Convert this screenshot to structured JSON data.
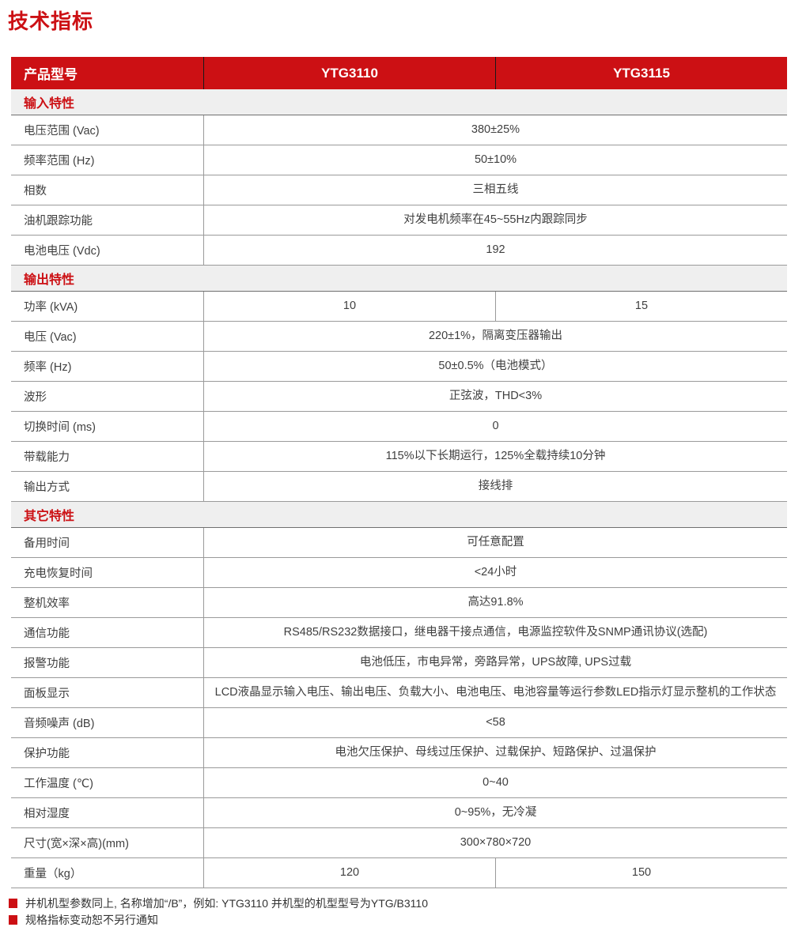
{
  "page": {
    "title": "技术指标"
  },
  "colors": {
    "accent_red": "#cc1014",
    "header_bg": "#cc1014",
    "section_bg": "#efefef",
    "body_text": "#3f3f3f",
    "grid_line": "#9a9a9a"
  },
  "table": {
    "header": {
      "label": "产品型号",
      "model_1": "YTG3110",
      "model_2": "YTG3115"
    },
    "sections": [
      {
        "title": "输入特性",
        "rows": [
          {
            "label": "电压范围 (Vac)",
            "value": "380±25%"
          },
          {
            "label": "频率范围 (Hz)",
            "value": "50±10%"
          },
          {
            "label": "相数",
            "value": "三相五线"
          },
          {
            "label": "油机跟踪功能",
            "value": "对发电机频率在45~55Hz内跟踪同步"
          },
          {
            "label": "电池电压 (Vdc)",
            "value": "192"
          }
        ]
      },
      {
        "title": "输出特性",
        "rows": [
          {
            "label": "功率 (kVA)",
            "values": [
              "10",
              "15"
            ]
          },
          {
            "label": "电压 (Vac)",
            "value": "220±1%，隔离变压器输出"
          },
          {
            "label": "频率 (Hz)",
            "value": "50±0.5%（电池模式）"
          },
          {
            "label": "波形",
            "value": "正弦波，THD<3%"
          },
          {
            "label": "切换时间 (ms)",
            "value": "0"
          },
          {
            "label": "带载能力",
            "value": "115%以下长期运行，125%全载持续10分钟"
          },
          {
            "label": "输出方式",
            "value": "接线排"
          }
        ]
      },
      {
        "title": "其它特性",
        "rows": [
          {
            "label": "备用时间",
            "value": "可任意配置"
          },
          {
            "label": "充电恢复时间",
            "value": "<24小时"
          },
          {
            "label": "整机效率",
            "value": "高达91.8%"
          },
          {
            "label": "通信功能",
            "value": "RS485/RS232数据接口，继电器干接点通信，电源监控软件及SNMP通讯协议(选配)"
          },
          {
            "label": "报警功能",
            "value": "电池低压，市电异常，旁路异常，UPS故障, UPS过载"
          },
          {
            "label": "面板显示",
            "value": "LCD液晶显示输入电压、输出电压、负载大小、电池电压、电池容量等运行参数LED指示灯显示整机的工作状态"
          },
          {
            "label": "音频噪声 (dB)",
            "value": "<58"
          },
          {
            "label": "保护功能",
            "value": "电池欠压保护、母线过压保护、过载保护、短路保护、过温保护"
          },
          {
            "label": "工作温度 (℃)",
            "value": "0~40"
          },
          {
            "label": "相对湿度",
            "value": "0~95%，无冷凝"
          },
          {
            "label": "尺寸(宽×深×高)(mm)",
            "value": "300×780×720"
          },
          {
            "label": "重量（kg）",
            "values": [
              "120",
              "150"
            ]
          }
        ]
      }
    ]
  },
  "notes": [
    "并机机型参数同上, 名称增加“/B”，例如: YTG3110 并机型的机型型号为YTG/B3110",
    "规格指标变动恕不另行通知"
  ]
}
